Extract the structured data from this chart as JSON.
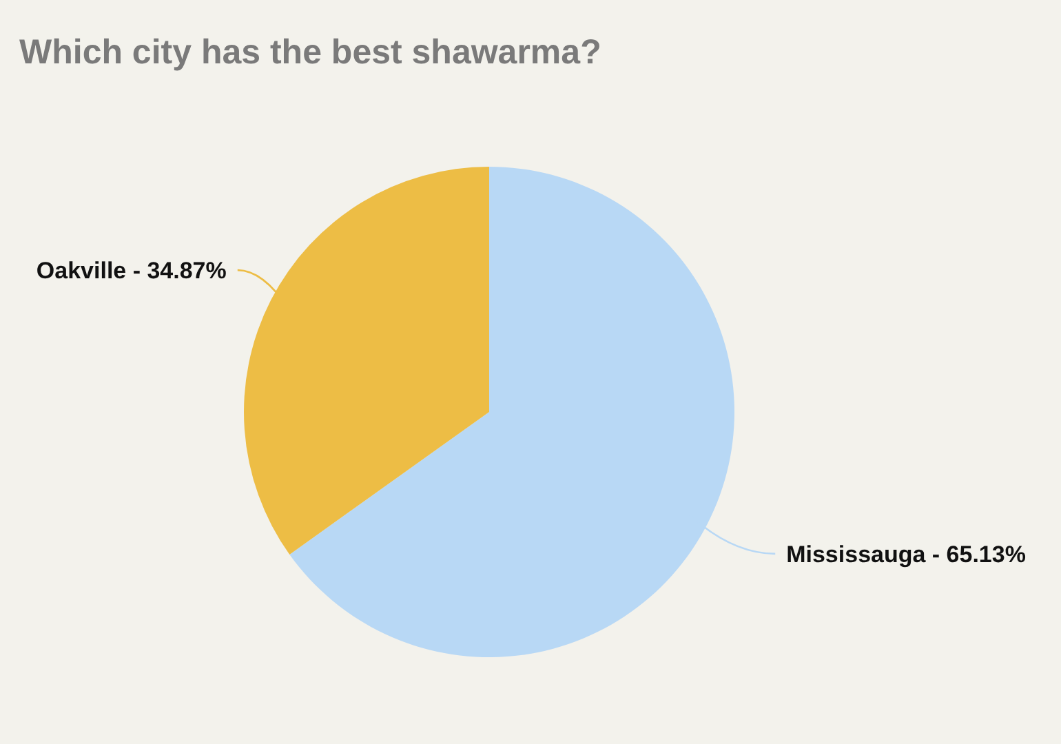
{
  "chart_data": {
    "type": "pie",
    "title": "Which city has the best shawarma?",
    "categories": [
      "Mississauga - 65.13%",
      "Oakville - 34.87%"
    ],
    "values": [
      65.13,
      34.87
    ],
    "colors": [
      "#b8d8f5",
      "#edbd45"
    ]
  }
}
